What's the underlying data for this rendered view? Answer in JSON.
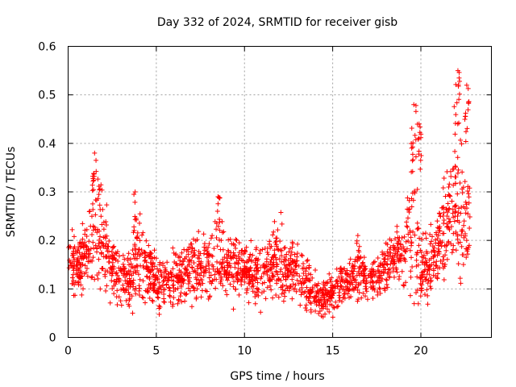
{
  "chart_data": {
    "type": "scatter",
    "title": "Day 332 of 2024, SRMTID for receiver gisb",
    "xlabel": "GPS time / hours",
    "ylabel": "SRMTID / TECUs",
    "xlim": [
      0,
      24
    ],
    "ylim": [
      0,
      0.6
    ],
    "xticks": [
      0,
      5,
      10,
      15,
      20
    ],
    "yticks": [
      0,
      0.1,
      0.2,
      0.3,
      0.4,
      0.5,
      0.6
    ],
    "xtick_labels": [
      "0",
      "5",
      "10",
      "15",
      "20"
    ],
    "ytick_labels": [
      "0",
      "0.1",
      "0.2",
      "0.3",
      "0.4",
      "0.5",
      "0.6"
    ],
    "grid": true,
    "marker": "+",
    "color": "#ff0000",
    "x_data_end": 22.8,
    "approx_series_level": {
      "hours": [
        0,
        0.5,
        1,
        1.5,
        2,
        2.5,
        3,
        3.5,
        4,
        4.5,
        5,
        5.5,
        6,
        6.5,
        7,
        7.5,
        8,
        8.5,
        9,
        9.5,
        10,
        10.5,
        11,
        11.5,
        12,
        12.5,
        13,
        13.5,
        14,
        14.5,
        15,
        15.5,
        16,
        16.5,
        17,
        17.5,
        18,
        18.5,
        19,
        19.5,
        20,
        20.5,
        21,
        21.5,
        22,
        22.5,
        22.8
      ],
      "median_srmtid": [
        0.17,
        0.14,
        0.17,
        0.22,
        0.19,
        0.14,
        0.12,
        0.12,
        0.17,
        0.14,
        0.11,
        0.12,
        0.12,
        0.13,
        0.15,
        0.14,
        0.15,
        0.16,
        0.14,
        0.15,
        0.14,
        0.13,
        0.13,
        0.15,
        0.15,
        0.14,
        0.13,
        0.12,
        0.09,
        0.08,
        0.1,
        0.11,
        0.12,
        0.15,
        0.12,
        0.12,
        0.15,
        0.17,
        0.17,
        0.25,
        0.15,
        0.14,
        0.19,
        0.24,
        0.28,
        0.26,
        0.22
      ],
      "spread": [
        0.04,
        0.04,
        0.05,
        0.08,
        0.06,
        0.04,
        0.04,
        0.04,
        0.07,
        0.04,
        0.04,
        0.03,
        0.04,
        0.04,
        0.05,
        0.04,
        0.05,
        0.05,
        0.04,
        0.04,
        0.04,
        0.04,
        0.04,
        0.04,
        0.06,
        0.04,
        0.04,
        0.04,
        0.03,
        0.03,
        0.03,
        0.03,
        0.03,
        0.05,
        0.03,
        0.03,
        0.04,
        0.04,
        0.04,
        0.12,
        0.05,
        0.04,
        0.05,
        0.07,
        0.11,
        0.1,
        0.08
      ]
    },
    "notable_peaks": [
      {
        "x": 1.5,
        "y": 0.38
      },
      {
        "x": 3.8,
        "y": 0.3
      },
      {
        "x": 8.5,
        "y": 0.29
      },
      {
        "x": 19.6,
        "y": 0.48
      },
      {
        "x": 19.9,
        "y": 0.44
      },
      {
        "x": 22.1,
        "y": 0.55
      },
      {
        "x": 22.6,
        "y": 0.52
      }
    ]
  }
}
